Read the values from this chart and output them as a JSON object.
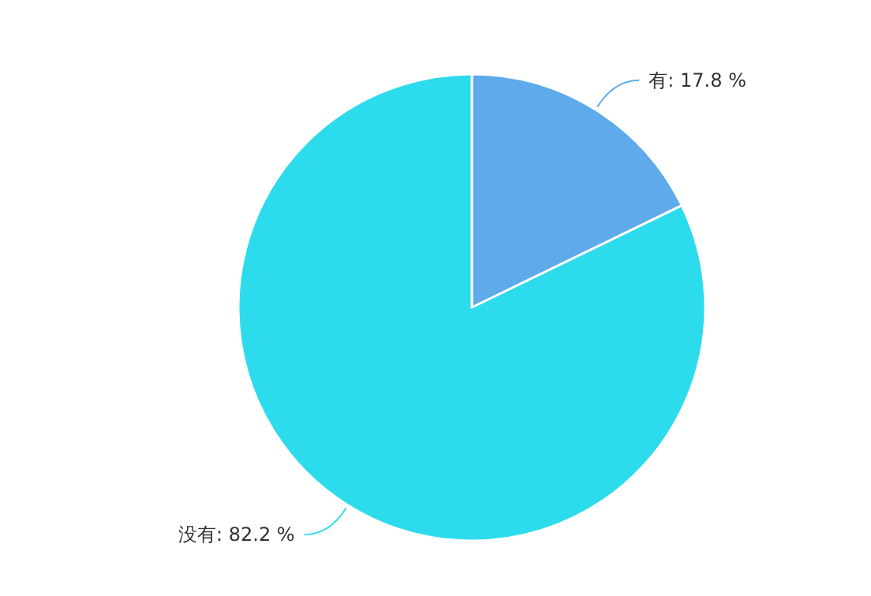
{
  "chart_data": {
    "type": "pie",
    "categories": [
      "有",
      "没有"
    ],
    "values": [
      17.8,
      82.2
    ],
    "colors": [
      "#5eaaea",
      "#2ddcec"
    ],
    "value_labels": [
      ": 17.8 %",
      ": 82.2 %"
    ]
  }
}
